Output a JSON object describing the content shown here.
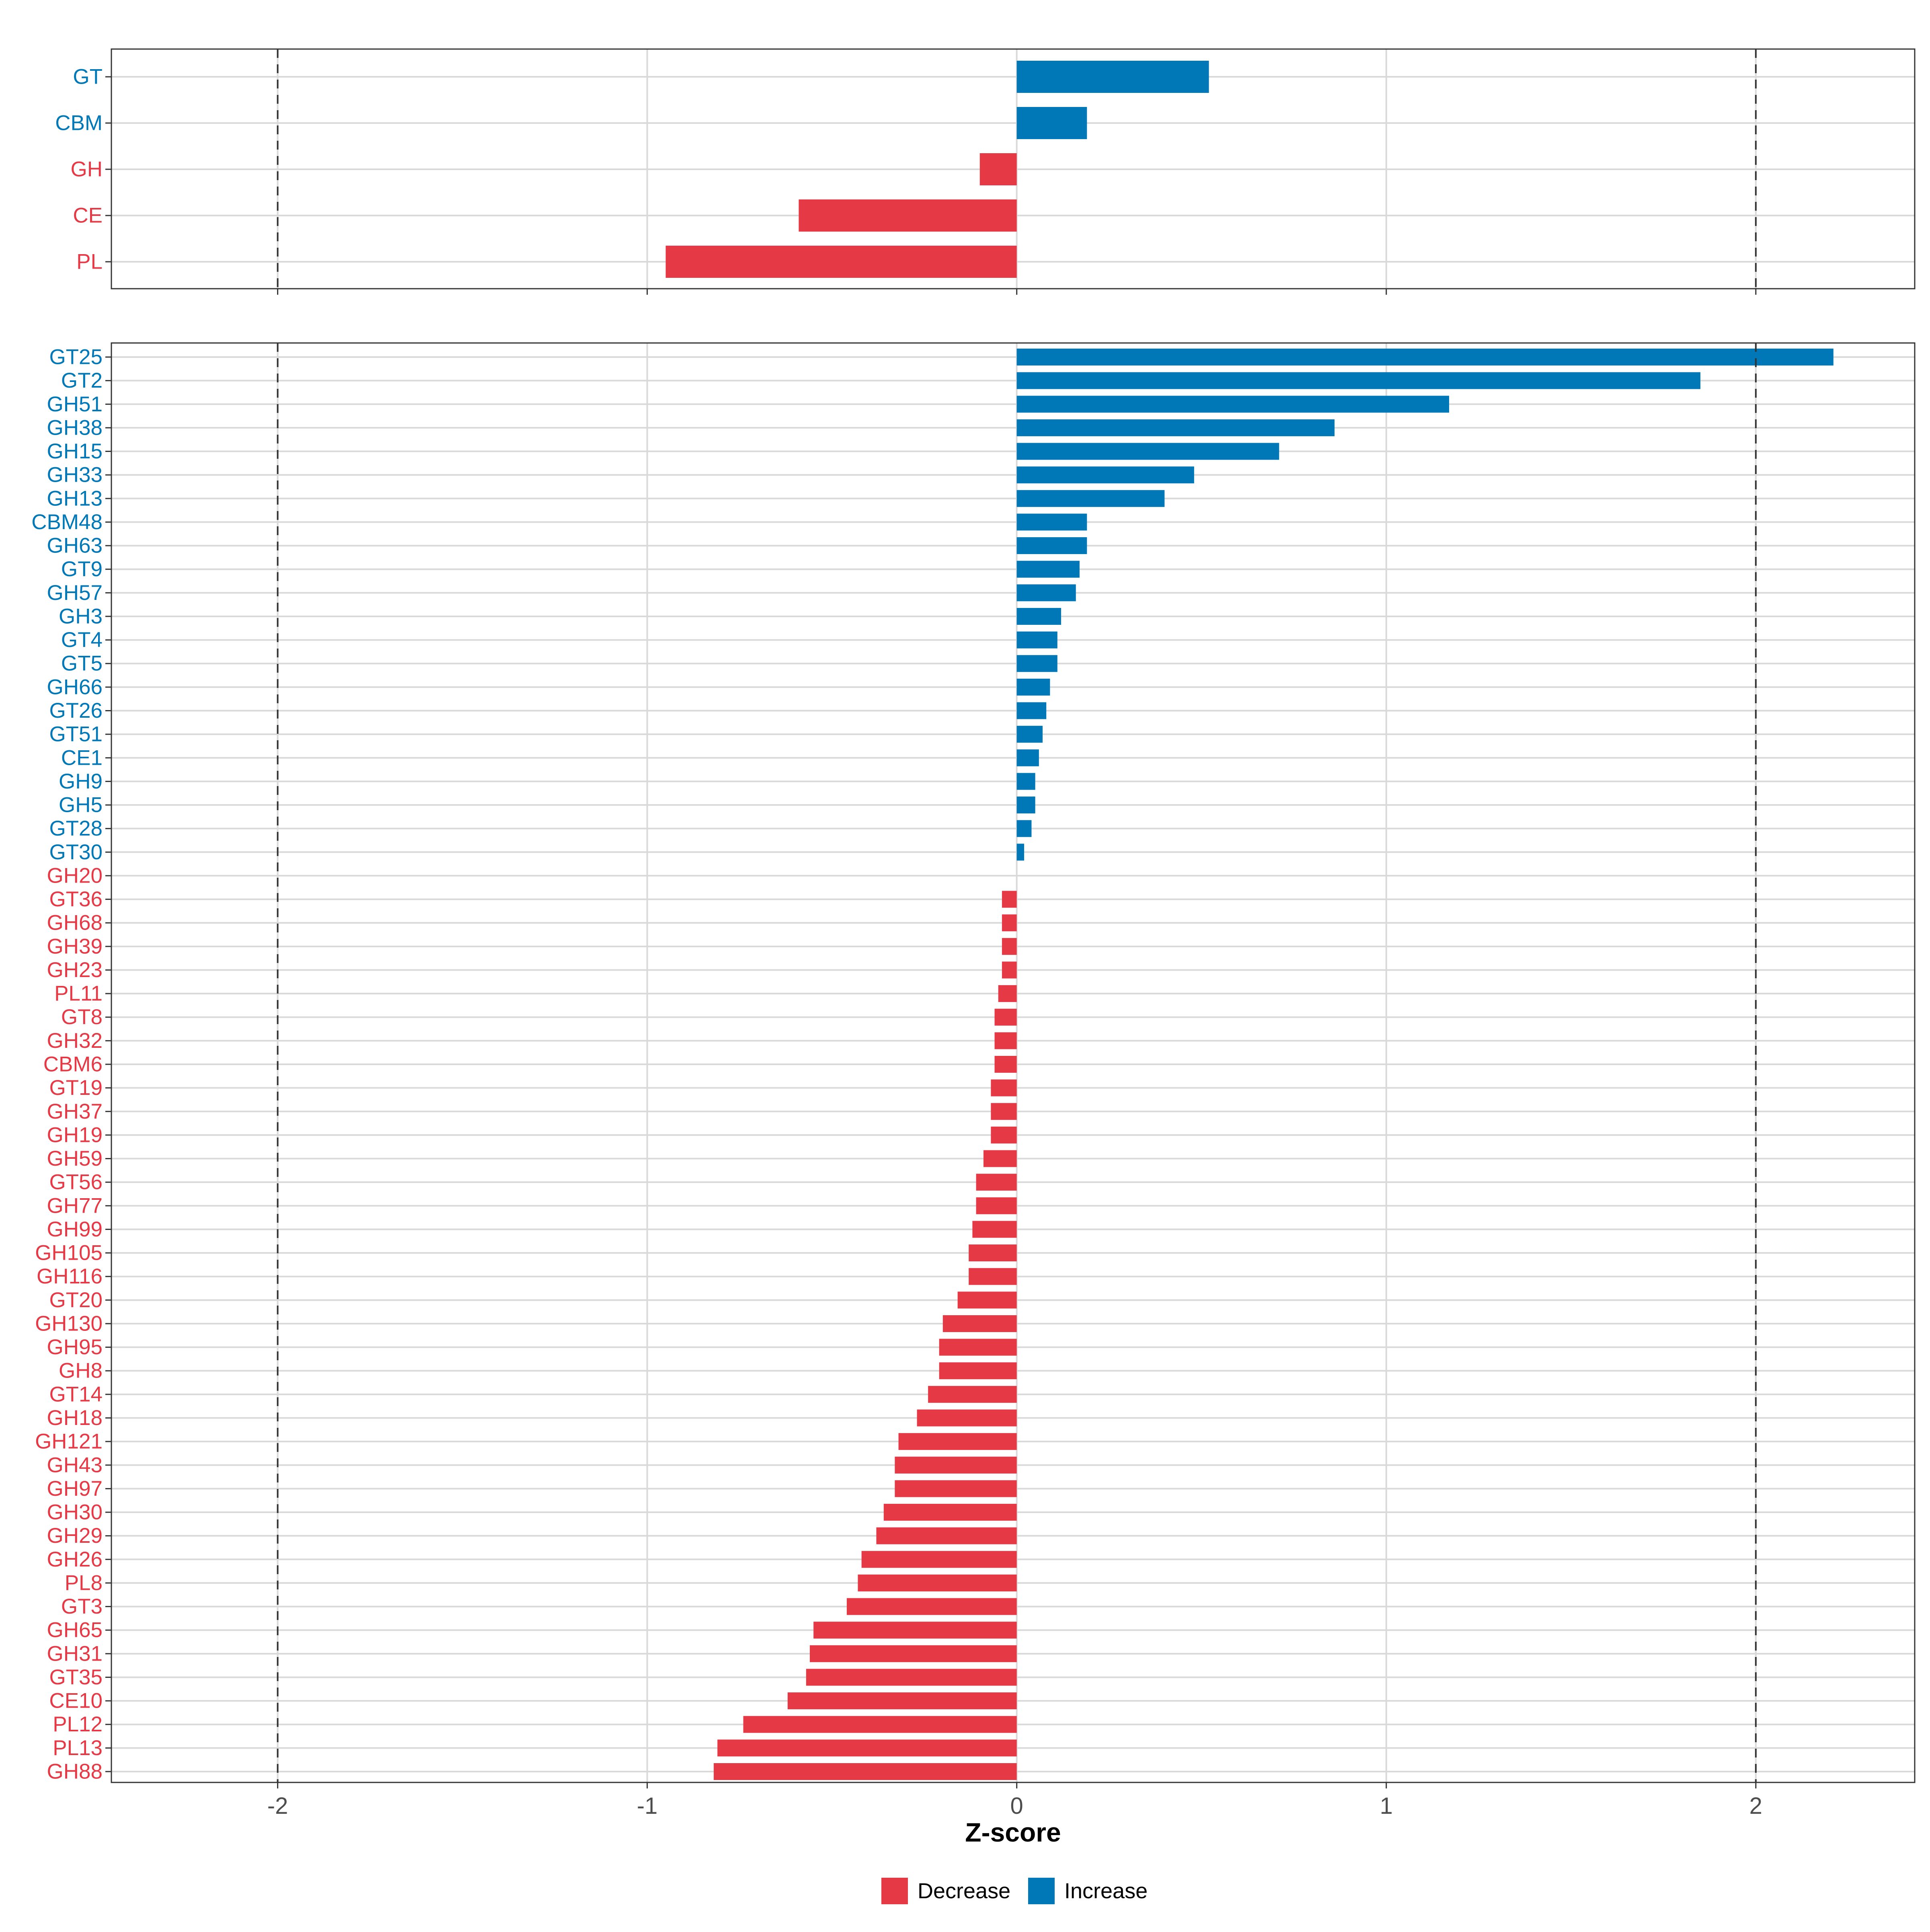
{
  "colors": {
    "decrease": "#E63946",
    "increase": "#0077B6",
    "grid": "#D9D9D9",
    "panel_border": "#333333",
    "dashed": "#333333",
    "axis_text": "#4D4D4D"
  },
  "chart_data": [
    {
      "type": "bar",
      "orientation": "horizontal",
      "panel": "top",
      "categories": [
        "GT",
        "CBM",
        "GH",
        "CE",
        "PL"
      ],
      "values": [
        0.52,
        0.19,
        -0.1,
        -0.59,
        -0.95
      ],
      "groups": [
        "Increase",
        "Increase",
        "Decrease",
        "Decrease",
        "Decrease"
      ],
      "xlim": [
        -2.45,
        2.43
      ],
      "reference_lines": [
        -2,
        2
      ],
      "grid": true
    },
    {
      "type": "bar",
      "orientation": "horizontal",
      "panel": "bottom",
      "categories": [
        "GT25",
        "GT2",
        "GH51",
        "GH38",
        "GH15",
        "GH33",
        "GH13",
        "CBM48",
        "GH63",
        "GT9",
        "GH57",
        "GH3",
        "GT4",
        "GT5",
        "GH66",
        "GT26",
        "GT51",
        "CE1",
        "GH9",
        "GH5",
        "GT28",
        "GT30",
        "GH20",
        "GT36",
        "GH68",
        "GH39",
        "GH23",
        "PL11",
        "GT8",
        "GH32",
        "CBM6",
        "GT19",
        "GH37",
        "GH19",
        "GH59",
        "GT56",
        "GH77",
        "GH99",
        "GH105",
        "GH116",
        "GT20",
        "GH130",
        "GH95",
        "GH8",
        "GT14",
        "GH18",
        "GH121",
        "GH43",
        "GH97",
        "GH30",
        "GH29",
        "GH26",
        "PL8",
        "GT3",
        "GH65",
        "GH31",
        "GT35",
        "CE10",
        "PL12",
        "PL13",
        "GH88"
      ],
      "values": [
        2.21,
        1.85,
        1.17,
        0.86,
        0.71,
        0.48,
        0.4,
        0.19,
        0.19,
        0.17,
        0.16,
        0.12,
        0.11,
        0.11,
        0.09,
        0.08,
        0.07,
        0.06,
        0.05,
        0.05,
        0.04,
        0.02,
        0.0,
        -0.04,
        -0.04,
        -0.04,
        -0.04,
        -0.05,
        -0.06,
        -0.06,
        -0.06,
        -0.07,
        -0.07,
        -0.07,
        -0.09,
        -0.11,
        -0.11,
        -0.12,
        -0.13,
        -0.13,
        -0.16,
        -0.2,
        -0.21,
        -0.21,
        -0.24,
        -0.27,
        -0.32,
        -0.33,
        -0.33,
        -0.36,
        -0.38,
        -0.42,
        -0.43,
        -0.46,
        -0.55,
        -0.56,
        -0.57,
        -0.62,
        -0.74,
        -0.81,
        -0.82
      ],
      "xlim": [
        -2.45,
        2.43
      ],
      "reference_lines": [
        -2,
        2
      ],
      "grid": true,
      "xticks": [
        "-2",
        "-1",
        "0",
        "1",
        "2"
      ],
      "xlabel": "Z-score"
    }
  ],
  "legend": {
    "position": "bottom",
    "items": [
      {
        "label": "Decrease",
        "color": "#E63946"
      },
      {
        "label": "Increase",
        "color": "#0077B6"
      }
    ]
  }
}
